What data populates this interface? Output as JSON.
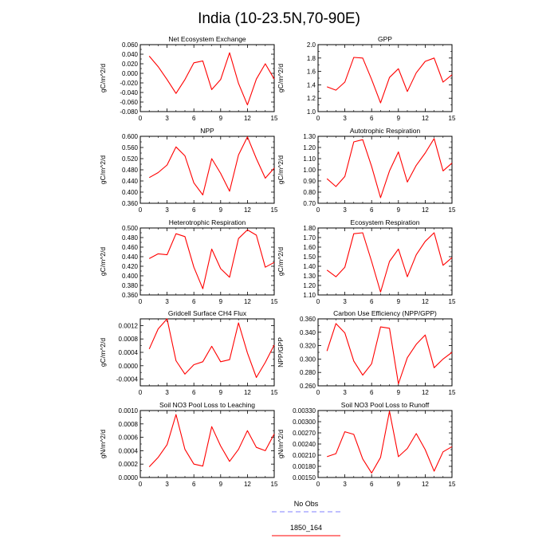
{
  "title": "India (10-23.5N,70-90E)",
  "legend": {
    "entries": [
      {
        "label": "No Obs",
        "color": "#8080ff",
        "dash": true
      },
      {
        "label": "1850_164",
        "color": "#ff0000",
        "dash": false
      }
    ]
  },
  "chart_data": [
    {
      "type": "line",
      "title": "Net Ecosystem Exchange",
      "ylabel": "gC/m^2/d",
      "xlim": [
        0,
        15
      ],
      "xticks": [
        0,
        3,
        6,
        9,
        12,
        15
      ],
      "ylim": [
        -0.08,
        0.06
      ],
      "yticks": [
        -0.08,
        -0.06,
        -0.04,
        -0.02,
        0,
        0.02,
        0.04,
        0.06
      ],
      "ytick_labels": [
        "-0.080",
        "-0.060",
        "-0.040",
        "-0.020",
        "0.000",
        "0.020",
        "0.040",
        "0.060"
      ],
      "series": [
        {
          "x": [
            1,
            2,
            3,
            4,
            5,
            6,
            7,
            8,
            9,
            10,
            11,
            12,
            13,
            14,
            15
          ],
          "y": [
            0.036,
            0.014,
            -0.013,
            -0.042,
            -0.013,
            0.022,
            0.026,
            -0.034,
            -0.013,
            0.043,
            -0.021,
            -0.066,
            -0.012,
            0.02,
            -0.012
          ]
        }
      ]
    },
    {
      "type": "line",
      "title": "GPP",
      "ylabel": "gC/m^2/d",
      "xlim": [
        0,
        15
      ],
      "xticks": [
        0,
        3,
        6,
        9,
        12,
        15
      ],
      "ylim": [
        1.0,
        2.0
      ],
      "yticks": [
        1.0,
        1.2,
        1.4,
        1.6,
        1.8,
        2.0
      ],
      "ytick_labels": [
        "1.0",
        "1.2",
        "1.4",
        "1.6",
        "1.8",
        "2.0"
      ],
      "series": [
        {
          "x": [
            1,
            2,
            3,
            4,
            5,
            6,
            7,
            8,
            9,
            10,
            11,
            12,
            13,
            14,
            15
          ],
          "y": [
            1.37,
            1.32,
            1.44,
            1.81,
            1.8,
            1.48,
            1.13,
            1.51,
            1.64,
            1.3,
            1.58,
            1.75,
            1.8,
            1.44,
            1.55
          ]
        }
      ]
    },
    {
      "type": "line",
      "title": "NPP",
      "ylabel": "gC/m^2/d",
      "xlim": [
        0,
        15
      ],
      "xticks": [
        0,
        3,
        6,
        9,
        12,
        15
      ],
      "ylim": [
        0.36,
        0.6
      ],
      "yticks": [
        0.36,
        0.4,
        0.44,
        0.48,
        0.52,
        0.56,
        0.6
      ],
      "ytick_labels": [
        "0.360",
        "0.400",
        "0.440",
        "0.480",
        "0.520",
        "0.560",
        "0.600"
      ],
      "series": [
        {
          "x": [
            1,
            2,
            3,
            4,
            5,
            6,
            7,
            8,
            9,
            10,
            11,
            12,
            13,
            14,
            15
          ],
          "y": [
            0.452,
            0.47,
            0.497,
            0.562,
            0.53,
            0.433,
            0.39,
            0.52,
            0.467,
            0.403,
            0.533,
            0.598,
            0.52,
            0.45,
            0.486
          ]
        }
      ]
    },
    {
      "type": "line",
      "title": "Autotrophic Respiration",
      "ylabel": "gC/m^2/d",
      "xlim": [
        0,
        15
      ],
      "xticks": [
        0,
        3,
        6,
        9,
        12,
        15
      ],
      "ylim": [
        0.7,
        1.3
      ],
      "yticks": [
        0.7,
        0.8,
        0.9,
        1.0,
        1.1,
        1.2,
        1.3
      ],
      "ytick_labels": [
        "0.70",
        "0.80",
        "0.90",
        "1.00",
        "1.10",
        "1.20",
        "1.30"
      ],
      "series": [
        {
          "x": [
            1,
            2,
            3,
            4,
            5,
            6,
            7,
            8,
            9,
            10,
            11,
            12,
            13,
            14,
            15
          ],
          "y": [
            0.92,
            0.85,
            0.94,
            1.25,
            1.27,
            1.03,
            0.75,
            0.99,
            1.16,
            0.89,
            1.04,
            1.15,
            1.28,
            0.99,
            1.06
          ]
        }
      ]
    },
    {
      "type": "line",
      "title": "Heterotrophic Respiration",
      "ylabel": "gC/m^2/d",
      "xlim": [
        0,
        15
      ],
      "xticks": [
        0,
        3,
        6,
        9,
        12,
        15
      ],
      "ylim": [
        0.36,
        0.5
      ],
      "yticks": [
        0.36,
        0.38,
        0.4,
        0.42,
        0.44,
        0.46,
        0.48,
        0.5
      ],
      "ytick_labels": [
        "0.360",
        "0.380",
        "0.400",
        "0.420",
        "0.440",
        "0.460",
        "0.480",
        "0.500"
      ],
      "series": [
        {
          "x": [
            1,
            2,
            3,
            4,
            5,
            6,
            7,
            8,
            9,
            10,
            11,
            12,
            13,
            14,
            15
          ],
          "y": [
            0.436,
            0.446,
            0.444,
            0.488,
            0.482,
            0.418,
            0.373,
            0.456,
            0.415,
            0.397,
            0.478,
            0.496,
            0.485,
            0.418,
            0.428
          ]
        }
      ]
    },
    {
      "type": "line",
      "title": "Ecosystem Respiration",
      "ylabel": "gC/m^2/d",
      "xlim": [
        0,
        15
      ],
      "xticks": [
        0,
        3,
        6,
        9,
        12,
        15
      ],
      "ylim": [
        1.1,
        1.8
      ],
      "yticks": [
        1.1,
        1.2,
        1.3,
        1.4,
        1.5,
        1.6,
        1.7,
        1.8
      ],
      "ytick_labels": [
        "1.10",
        "1.20",
        "1.30",
        "1.40",
        "1.50",
        "1.60",
        "1.70",
        "1.80"
      ],
      "series": [
        {
          "x": [
            1,
            2,
            3,
            4,
            5,
            6,
            7,
            8,
            9,
            10,
            11,
            12,
            13,
            14,
            15
          ],
          "y": [
            1.36,
            1.29,
            1.39,
            1.74,
            1.75,
            1.45,
            1.13,
            1.45,
            1.58,
            1.29,
            1.52,
            1.66,
            1.75,
            1.41,
            1.49
          ]
        }
      ]
    },
    {
      "type": "line",
      "title": "Gridcell Surface CH4 Flux",
      "ylabel": "gC/m^2/d",
      "xlim": [
        0,
        15
      ],
      "xticks": [
        0,
        3,
        6,
        9,
        12,
        15
      ],
      "ylim": [
        -0.0006,
        0.0014
      ],
      "yticks": [
        -0.0004,
        0,
        0.0004,
        0.0008,
        0.0012
      ],
      "ytick_labels": [
        "-0.0004",
        "0.0000",
        "0.0004",
        "0.0008",
        "0.0012"
      ],
      "series": [
        {
          "x": [
            1,
            2,
            3,
            4,
            5,
            6,
            7,
            8,
            9,
            10,
            11,
            12,
            13,
            14,
            15
          ],
          "y": [
            0.0005,
            0.0011,
            0.0014,
            0.00015,
            -0.00025,
            3e-05,
            0.00012,
            0.00058,
            0.00012,
            0.00018,
            0.00128,
            0.00038,
            -0.00035,
            0.0001,
            0.00062
          ]
        }
      ]
    },
    {
      "type": "line",
      "title": "Carbon Use Efficiency (NPP/GPP)",
      "ylabel": "NPP/GPP",
      "xlim": [
        0,
        15
      ],
      "xticks": [
        0,
        3,
        6,
        9,
        12,
        15
      ],
      "ylim": [
        0.26,
        0.36
      ],
      "yticks": [
        0.26,
        0.28,
        0.3,
        0.32,
        0.34,
        0.36
      ],
      "ytick_labels": [
        "0.260",
        "0.280",
        "0.300",
        "0.320",
        "0.340",
        "0.360"
      ],
      "series": [
        {
          "x": [
            1,
            2,
            3,
            4,
            5,
            6,
            7,
            8,
            9,
            10,
            11,
            12,
            13,
            14,
            15
          ],
          "y": [
            0.312,
            0.353,
            0.339,
            0.297,
            0.276,
            0.293,
            0.348,
            0.346,
            0.263,
            0.302,
            0.322,
            0.336,
            0.287,
            0.3,
            0.31
          ]
        }
      ]
    },
    {
      "type": "line",
      "title": "Soil NO3 Pool Loss to Leaching",
      "ylabel": "gN/m^2/d",
      "xlim": [
        0,
        15
      ],
      "xticks": [
        0,
        3,
        6,
        9,
        12,
        15
      ],
      "ylim": [
        0,
        0.001
      ],
      "yticks": [
        0,
        0.0002,
        0.0004,
        0.0006,
        0.0008,
        0.001
      ],
      "ytick_labels": [
        "0.0000",
        "0.0002",
        "0.0004",
        "0.0006",
        "0.0008",
        "0.0010"
      ],
      "series": [
        {
          "x": [
            1,
            2,
            3,
            4,
            5,
            6,
            7,
            8,
            9,
            10,
            11,
            12,
            13,
            14,
            15
          ],
          "y": [
            0.00016,
            0.0003,
            0.00049,
            0.00094,
            0.00042,
            0.0002,
            0.00017,
            0.00076,
            0.00047,
            0.00024,
            0.00042,
            0.0007,
            0.00045,
            0.0004,
            0.00065
          ]
        }
      ]
    },
    {
      "type": "line",
      "title": "Soil NO3 Pool Loss to Runoff",
      "ylabel": "gN/m^2/d",
      "xlim": [
        0,
        15
      ],
      "xticks": [
        0,
        3,
        6,
        9,
        12,
        15
      ],
      "ylim": [
        0.0015,
        0.0033
      ],
      "yticks": [
        0.0015,
        0.0018,
        0.0021,
        0.0024,
        0.0027,
        0.003,
        0.0033
      ],
      "ytick_labels": [
        "0.00150",
        "0.00180",
        "0.00210",
        "0.00240",
        "0.00270",
        "0.00300",
        "0.00330"
      ],
      "series": [
        {
          "x": [
            1,
            2,
            3,
            4,
            5,
            6,
            7,
            8,
            9,
            10,
            11,
            12,
            13,
            14,
            15
          ],
          "y": [
            0.00206,
            0.00214,
            0.00273,
            0.00266,
            0.002,
            0.00162,
            0.00204,
            0.00328,
            0.00206,
            0.00228,
            0.00268,
            0.00225,
            0.00167,
            0.00219,
            0.00233
          ]
        }
      ]
    }
  ]
}
